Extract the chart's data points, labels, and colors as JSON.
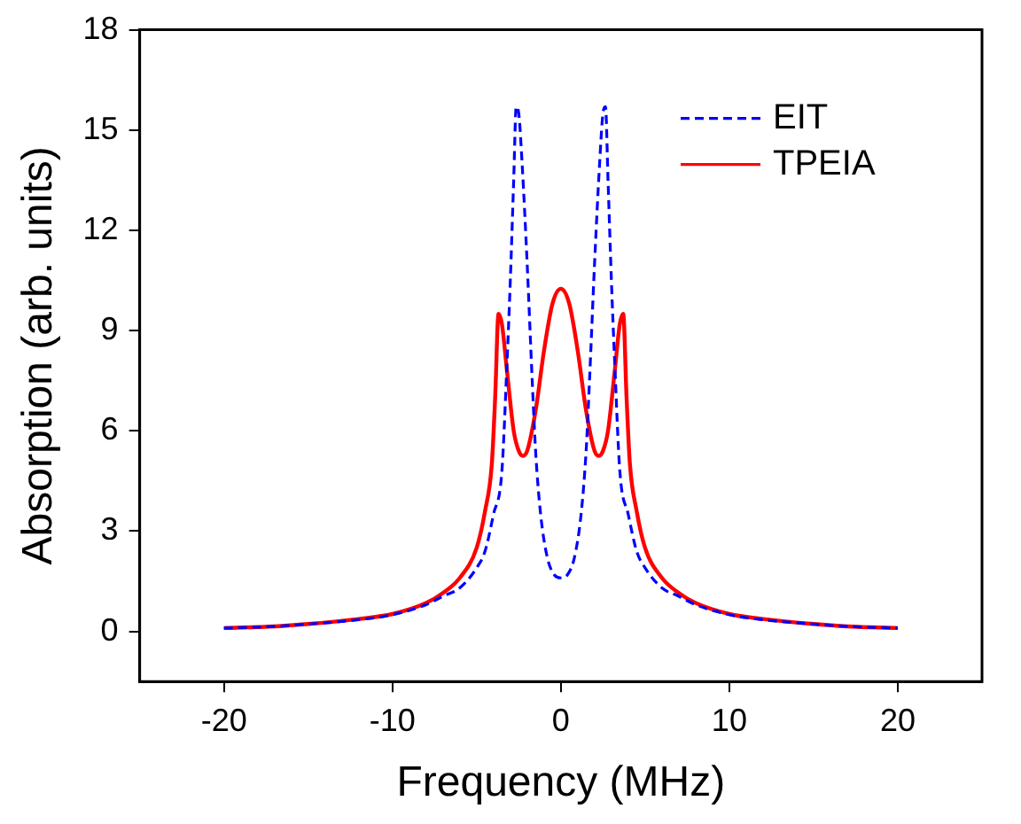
{
  "chart_data": {
    "type": "line",
    "xlabel": "Frequency (MHz)",
    "ylabel": "Absorption (arb. units)",
    "xlim": [
      -25,
      25
    ],
    "xticks": [
      -20,
      -10,
      0,
      10,
      20
    ],
    "ylim": [
      -1.5,
      18
    ],
    "yticks": [
      0,
      3,
      6,
      9,
      12,
      15,
      18
    ],
    "grid": false,
    "legend": "top right",
    "marker": "none",
    "series": [
      {
        "name": "EIT",
        "color": "#0000ff",
        "line_style": "dashed",
        "x": [
          -20,
          -17,
          -15,
          -12,
          -10,
          -8,
          -7,
          -6,
          -5,
          -4.5,
          -4,
          -3.5,
          -3.2,
          -3,
          -2.8,
          -2.65,
          -2.5,
          -2.3,
          -2,
          -1.7,
          -1.5,
          -1.2,
          -0.8,
          -0.4,
          0,
          0.4,
          0.8,
          1.2,
          1.5,
          1.7,
          2,
          2.3,
          2.5,
          2.65,
          2.8,
          3,
          3.2,
          3.5,
          4,
          4.5,
          5,
          6,
          7,
          8,
          10,
          12,
          15,
          17,
          20
        ],
        "values": [
          0.1,
          0.15,
          0.22,
          0.35,
          0.5,
          0.8,
          1.05,
          1.3,
          1.9,
          2.4,
          3.5,
          4.8,
          8,
          10.5,
          13.5,
          15.7,
          15.5,
          14,
          11,
          7.5,
          5.4,
          3.5,
          2.2,
          1.7,
          1.6,
          1.7,
          2.2,
          3.5,
          5.4,
          7.5,
          11,
          14,
          15.5,
          15.7,
          13.5,
          10.5,
          8,
          4.8,
          3.5,
          2.4,
          1.9,
          1.3,
          1.05,
          0.8,
          0.5,
          0.35,
          0.22,
          0.15,
          0.1
        ]
      },
      {
        "name": "TPEIA",
        "color": "#ff0000",
        "line_style": "solid",
        "x": [
          -20,
          -17,
          -15,
          -12,
          -10,
          -8,
          -7,
          -6,
          -5,
          -4.5,
          -4.1,
          -3.9,
          -3.7,
          -3.5,
          -3.2,
          -2.8,
          -2.5,
          -2.25,
          -2,
          -1.5,
          -1,
          -0.5,
          0,
          0.5,
          1,
          1.5,
          2,
          2.25,
          2.5,
          2.8,
          3.2,
          3.5,
          3.7,
          3.9,
          4.1,
          4.5,
          5,
          6,
          7,
          8,
          10,
          12,
          15,
          17,
          20
        ],
        "values": [
          0.1,
          0.15,
          0.22,
          0.37,
          0.52,
          0.85,
          1.15,
          1.6,
          2.5,
          3.6,
          5,
          7,
          9.5,
          9.2,
          7.8,
          6,
          5.4,
          5.25,
          5.4,
          6.6,
          8.4,
          9.8,
          10.25,
          9.8,
          8.4,
          6.6,
          5.4,
          5.25,
          5.4,
          6,
          7.8,
          9.2,
          9.5,
          7,
          5,
          3.6,
          2.5,
          1.6,
          1.15,
          0.85,
          0.52,
          0.37,
          0.22,
          0.15,
          0.1
        ]
      }
    ]
  }
}
